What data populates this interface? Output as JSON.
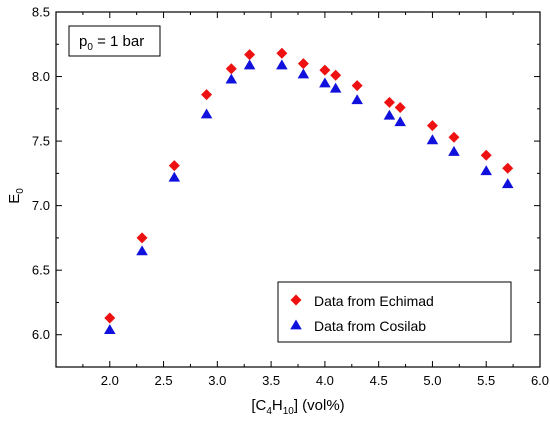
{
  "chart_data": {
    "type": "scatter",
    "annotation": {
      "main": "p",
      "sub": "0",
      "rest": " = 1 bar"
    },
    "xlabel": {
      "open": "[C",
      "sub1": "4",
      "mid": "H",
      "sub2": "10",
      "close": "] (vol%)"
    },
    "ylabel": {
      "main": "E",
      "sub": "0"
    },
    "xlim": [
      1.5,
      6.0
    ],
    "ylim": [
      5.75,
      8.5
    ],
    "xticks": [
      "2.0",
      "2.5",
      "3.0",
      "3.5",
      "4.0",
      "4.5",
      "5.0",
      "5.5",
      "6.0"
    ],
    "yticks": [
      "6.0",
      "6.5",
      "7.0",
      "7.5",
      "8.0",
      "8.5"
    ],
    "legend_position": "bottom-right",
    "series": [
      {
        "name": "Data from Echimad",
        "color": "#ee1111",
        "marker": "diamond",
        "points": [
          [
            2.0,
            6.13
          ],
          [
            2.3,
            6.75
          ],
          [
            2.6,
            7.31
          ],
          [
            2.9,
            7.86
          ],
          [
            3.13,
            8.06
          ],
          [
            3.3,
            8.17
          ],
          [
            3.6,
            8.18
          ],
          [
            3.8,
            8.1
          ],
          [
            4.0,
            8.05
          ],
          [
            4.1,
            8.01
          ],
          [
            4.3,
            7.93
          ],
          [
            4.6,
            7.8
          ],
          [
            4.7,
            7.76
          ],
          [
            5.0,
            7.62
          ],
          [
            5.2,
            7.53
          ],
          [
            5.5,
            7.39
          ],
          [
            5.7,
            7.29
          ]
        ]
      },
      {
        "name": "Data from Cosilab",
        "color": "#1111dd",
        "marker": "triangle",
        "points": [
          [
            2.0,
            6.04
          ],
          [
            2.3,
            6.65
          ],
          [
            2.6,
            7.22
          ],
          [
            2.9,
            7.71
          ],
          [
            3.13,
            7.98
          ],
          [
            3.3,
            8.09
          ],
          [
            3.6,
            8.09
          ],
          [
            3.8,
            8.02
          ],
          [
            4.0,
            7.95
          ],
          [
            4.1,
            7.91
          ],
          [
            4.3,
            7.82
          ],
          [
            4.6,
            7.7
          ],
          [
            4.7,
            7.65
          ],
          [
            5.0,
            7.51
          ],
          [
            5.2,
            7.42
          ],
          [
            5.5,
            7.27
          ],
          [
            5.7,
            7.17
          ]
        ]
      }
    ]
  }
}
